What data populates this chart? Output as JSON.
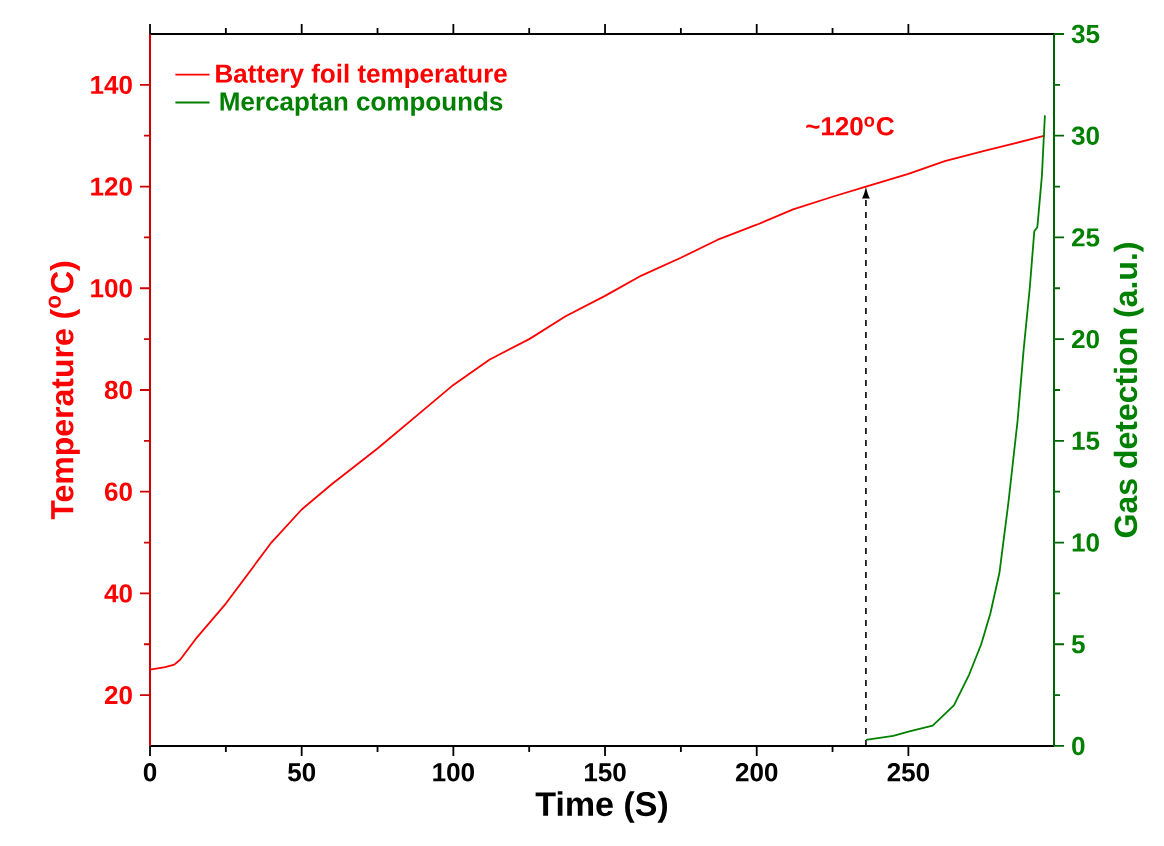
{
  "chart_data": {
    "type": "line",
    "xlabel": "Time (S)",
    "ylabel": "Temperature ($^{o}$C)",
    "y2label": "Gas detection (a.u.)",
    "xlim": [
      0,
      298
    ],
    "xticks": [
      0,
      50,
      100,
      150,
      200,
      250
    ],
    "ylim": [
      10,
      150
    ],
    "yticks": [
      20,
      40,
      60,
      80,
      100,
      120,
      140
    ],
    "y2lim": [
      0,
      35
    ],
    "y2ticks": [
      0,
      5,
      10,
      15,
      20,
      25,
      30,
      35
    ],
    "legend": "top left",
    "grid": false,
    "marker": "none",
    "line_style": "solid",
    "annotations": [
      {
        "text": "~120$^{o}$C",
        "x": 236,
        "y": 120
      }
    ],
    "series": [
      {
        "name": "Battery foil temperature",
        "color": "#ff0000",
        "x": [
          0,
          5,
          8,
          10,
          15,
          20,
          25,
          30,
          40,
          50,
          60,
          75,
          90,
          100,
          112,
          125,
          137,
          150,
          162,
          175,
          187,
          200,
          212,
          225,
          236,
          250,
          262,
          275,
          285,
          295
        ],
        "values": [
          25,
          25.5,
          26,
          27,
          31,
          34.5,
          38,
          42,
          50,
          56.5,
          61.5,
          68.5,
          76,
          81,
          86,
          90,
          94.5,
          98.5,
          102.5,
          106,
          109.5,
          112.5,
          115.5,
          118,
          120,
          122.5,
          125,
          127,
          128.5,
          130
        ]
      },
      {
        "name": "Mercaptan compounds",
        "color": "#008000",
        "axis": "y2",
        "x": [
          236,
          245,
          250,
          258,
          265,
          270,
          274,
          277,
          280,
          283,
          286,
          288,
          290,
          291.5,
          292.5,
          294,
          295
        ],
        "values": [
          0.3,
          0.5,
          0.7,
          1,
          2,
          3.5,
          5,
          6.5,
          8.5,
          12,
          16,
          19.5,
          22.5,
          25.3,
          25.5,
          28,
          31
        ]
      }
    ]
  }
}
